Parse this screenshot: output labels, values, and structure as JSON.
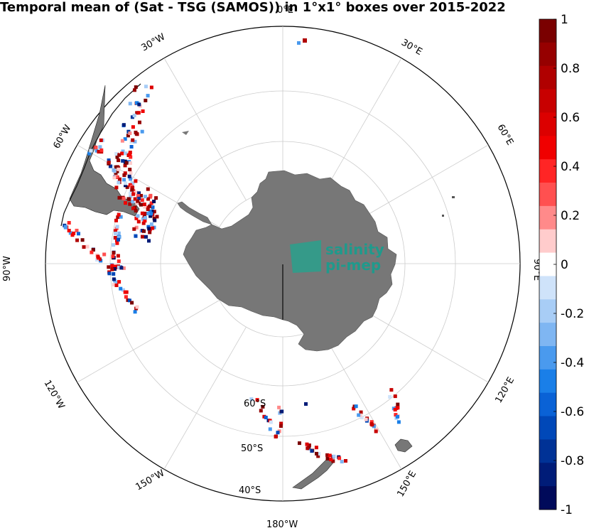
{
  "chart_data": {
    "type": "heatmap",
    "projection": "south polar stereographic",
    "title": "Temporal mean of (Sat - TSG (SAMOS)) in 1°x1° boxes over 2015-2022",
    "longitude_labels": [
      "180°W",
      "150°W",
      "120°W",
      "90°W",
      "60°W",
      "30°W",
      "0°E",
      "30°E",
      "60°E",
      "90°E",
      "120°E",
      "150°E"
    ],
    "latitude_labels": [
      "60°S",
      "50°S",
      "40°S"
    ],
    "colorbar": {
      "min": -1,
      "max": 1,
      "levels": 20,
      "ticks": [
        1,
        0.8,
        0.6,
        0.4,
        0.2,
        0,
        -0.2,
        -0.4,
        -0.6,
        -0.8,
        -1
      ],
      "tick_labels": [
        "1",
        "0.8",
        "0.6",
        "0.4",
        "0.2",
        "0",
        "-0.2",
        "-0.4",
        "-0.6",
        "-0.8",
        "-1"
      ],
      "colors_top_to_bottom": [
        "#7a0000",
        "#960000",
        "#b00000",
        "#c80000",
        "#dc0000",
        "#f00000",
        "#ff2525",
        "#ff5050",
        "#ff8a8a",
        "#ffcccc",
        "#ffffff",
        "#cfe3fa",
        "#a8cdf6",
        "#7fb6f2",
        "#4a9aee",
        "#1a7fe8",
        "#0a62d6",
        "#0048b8",
        "#003296",
        "#001c78",
        "#000a5a"
      ]
    },
    "data_extent": "scattered 1°x1° boxes along ship tracks in the Drake Passage, South Atlantic, Southwest Pacific and Antarctic coastal waters; values in [-1, 1]",
    "land_color": "#777777"
  },
  "logo": {
    "line1": "salinity",
    "line2": "pi-mep"
  }
}
